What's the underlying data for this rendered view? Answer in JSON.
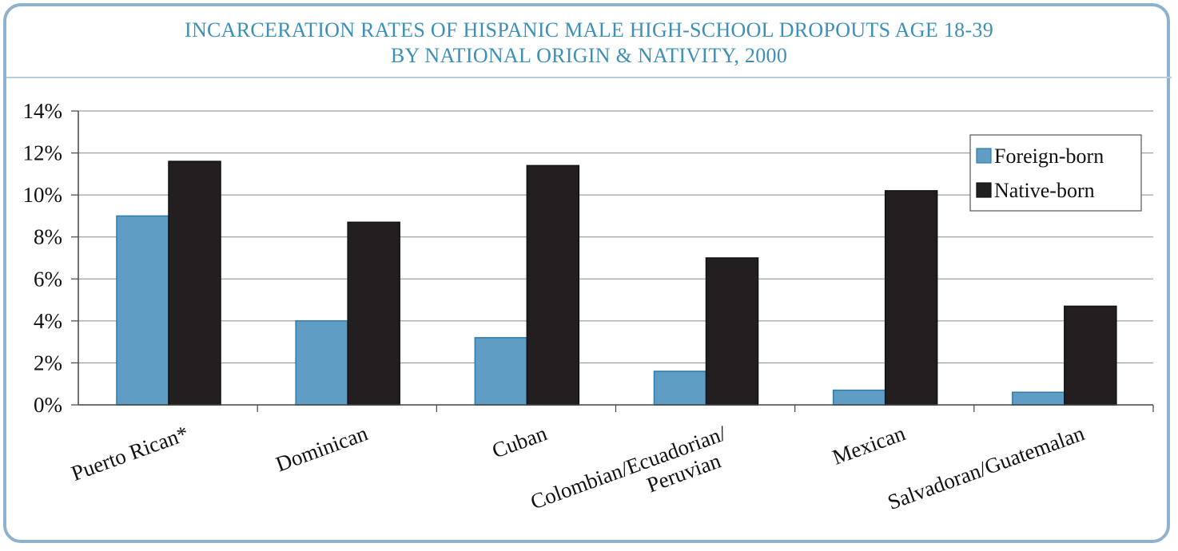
{
  "chart_data": {
    "type": "bar",
    "title": "INCARCERATION RATES OF HISPANIC MALE HIGH-SCHOOL DROPOUTS AGE 18-39",
    "subtitle": "BY NATIONAL ORIGIN & NATIVITY, 2000",
    "categories": [
      [
        "Puerto Rican*"
      ],
      [
        "Dominican"
      ],
      [
        "Cuban"
      ],
      [
        "Colombian/Ecuadorian/",
        "Peruvian"
      ],
      [
        "Mexican"
      ],
      [
        "Salvadoran/Guatemalan"
      ]
    ],
    "series": [
      {
        "name": "Foreign-born",
        "color": "#5f9dc4",
        "values": [
          9.0,
          4.0,
          3.2,
          1.6,
          0.7,
          0.6
        ]
      },
      {
        "name": "Native-born",
        "color": "#231f20",
        "values": [
          11.6,
          8.7,
          11.4,
          7.0,
          10.2,
          4.7
        ]
      }
    ],
    "ylim": [
      0,
      14
    ],
    "yticks": [
      0,
      2,
      4,
      6,
      8,
      10,
      12,
      14
    ],
    "ytick_labels": [
      "0%",
      "2%",
      "4%",
      "6%",
      "8%",
      "10%",
      "12%",
      "14%"
    ],
    "xlabel": "",
    "ylabel": "",
    "grid": true,
    "legend_position": "top-right"
  }
}
